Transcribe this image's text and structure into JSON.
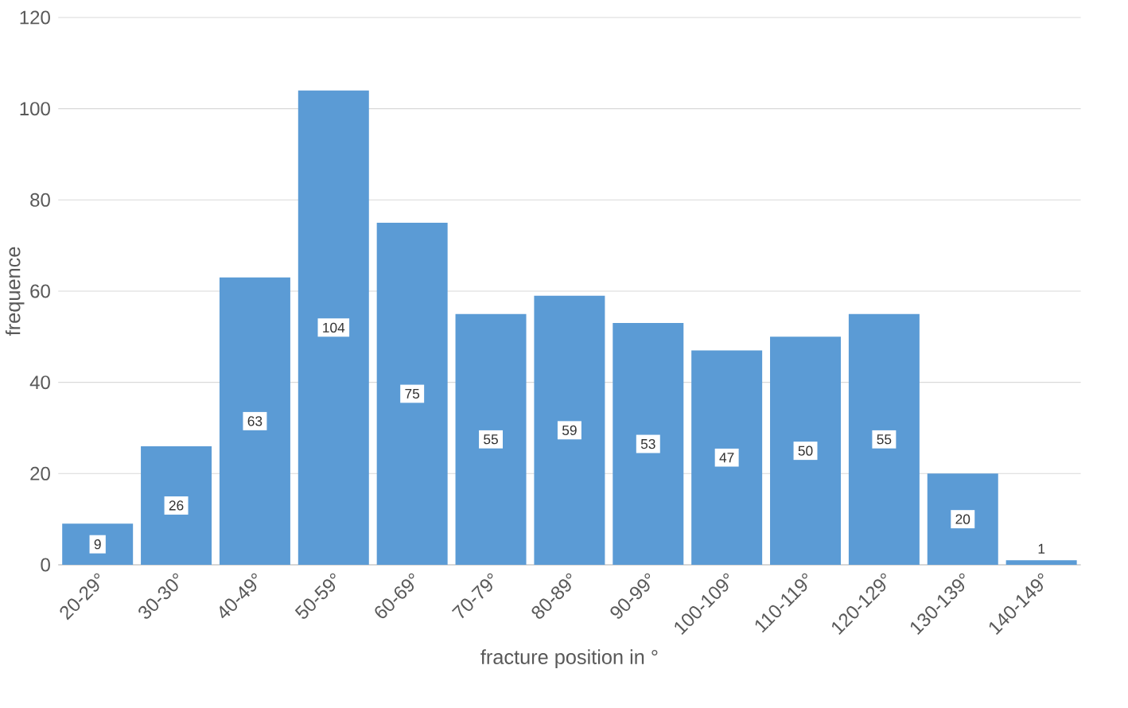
{
  "chart_data": {
    "type": "bar",
    "xlabel": "fracture position in °",
    "ylabel": "frequence",
    "categories": [
      "20-29°",
      "30-30°",
      "40-49°",
      "50-59°",
      "60-69°",
      "70-79°",
      "80-89°",
      "90-99°",
      "100-109°",
      "110-119°",
      "120-129°",
      "130-139°",
      "140-149°"
    ],
    "values": [
      9,
      26,
      63,
      104,
      75,
      55,
      59,
      53,
      47,
      50,
      55,
      20,
      1
    ],
    "color": "#5b9bd5",
    "ylim": [
      0,
      120
    ],
    "yticks": [
      0,
      20,
      40,
      60,
      80,
      100,
      120
    ],
    "grid": "y",
    "data_labels": true
  }
}
